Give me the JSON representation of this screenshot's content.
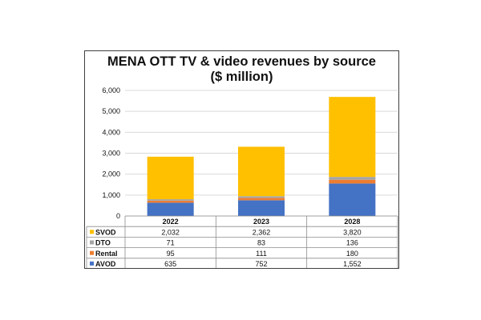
{
  "chart_data": {
    "type": "bar",
    "stacked": true,
    "title": "MENA OTT TV & video revenues by source",
    "subtitle": "($ million)",
    "categories": [
      "2022",
      "2023",
      "2028"
    ],
    "yticks": [
      "0",
      "1,000",
      "2,000",
      "3,000",
      "4,000",
      "5,000",
      "6,000"
    ],
    "ylim": [
      0,
      6000
    ],
    "grid": true,
    "legend": "data table rows, left",
    "series": [
      {
        "name": "AVOD",
        "color": "#4472C4",
        "values": [
          635,
          752,
          1552
        ],
        "labels": [
          "635",
          "752",
          "1,552"
        ]
      },
      {
        "name": "Rental",
        "color": "#ED7D31",
        "values": [
          95,
          111,
          180
        ],
        "labels": [
          "95",
          "111",
          "180"
        ]
      },
      {
        "name": "DTO",
        "color": "#A5A5A5",
        "values": [
          71,
          83,
          136
        ],
        "labels": [
          "71",
          "83",
          "136"
        ]
      },
      {
        "name": "SVOD",
        "color": "#FFC000",
        "values": [
          2032,
          2362,
          3820
        ],
        "labels": [
          "2,032",
          "2,362",
          "3,820"
        ]
      }
    ],
    "table_row_order": [
      "SVOD",
      "DTO",
      "Rental",
      "AVOD"
    ]
  }
}
